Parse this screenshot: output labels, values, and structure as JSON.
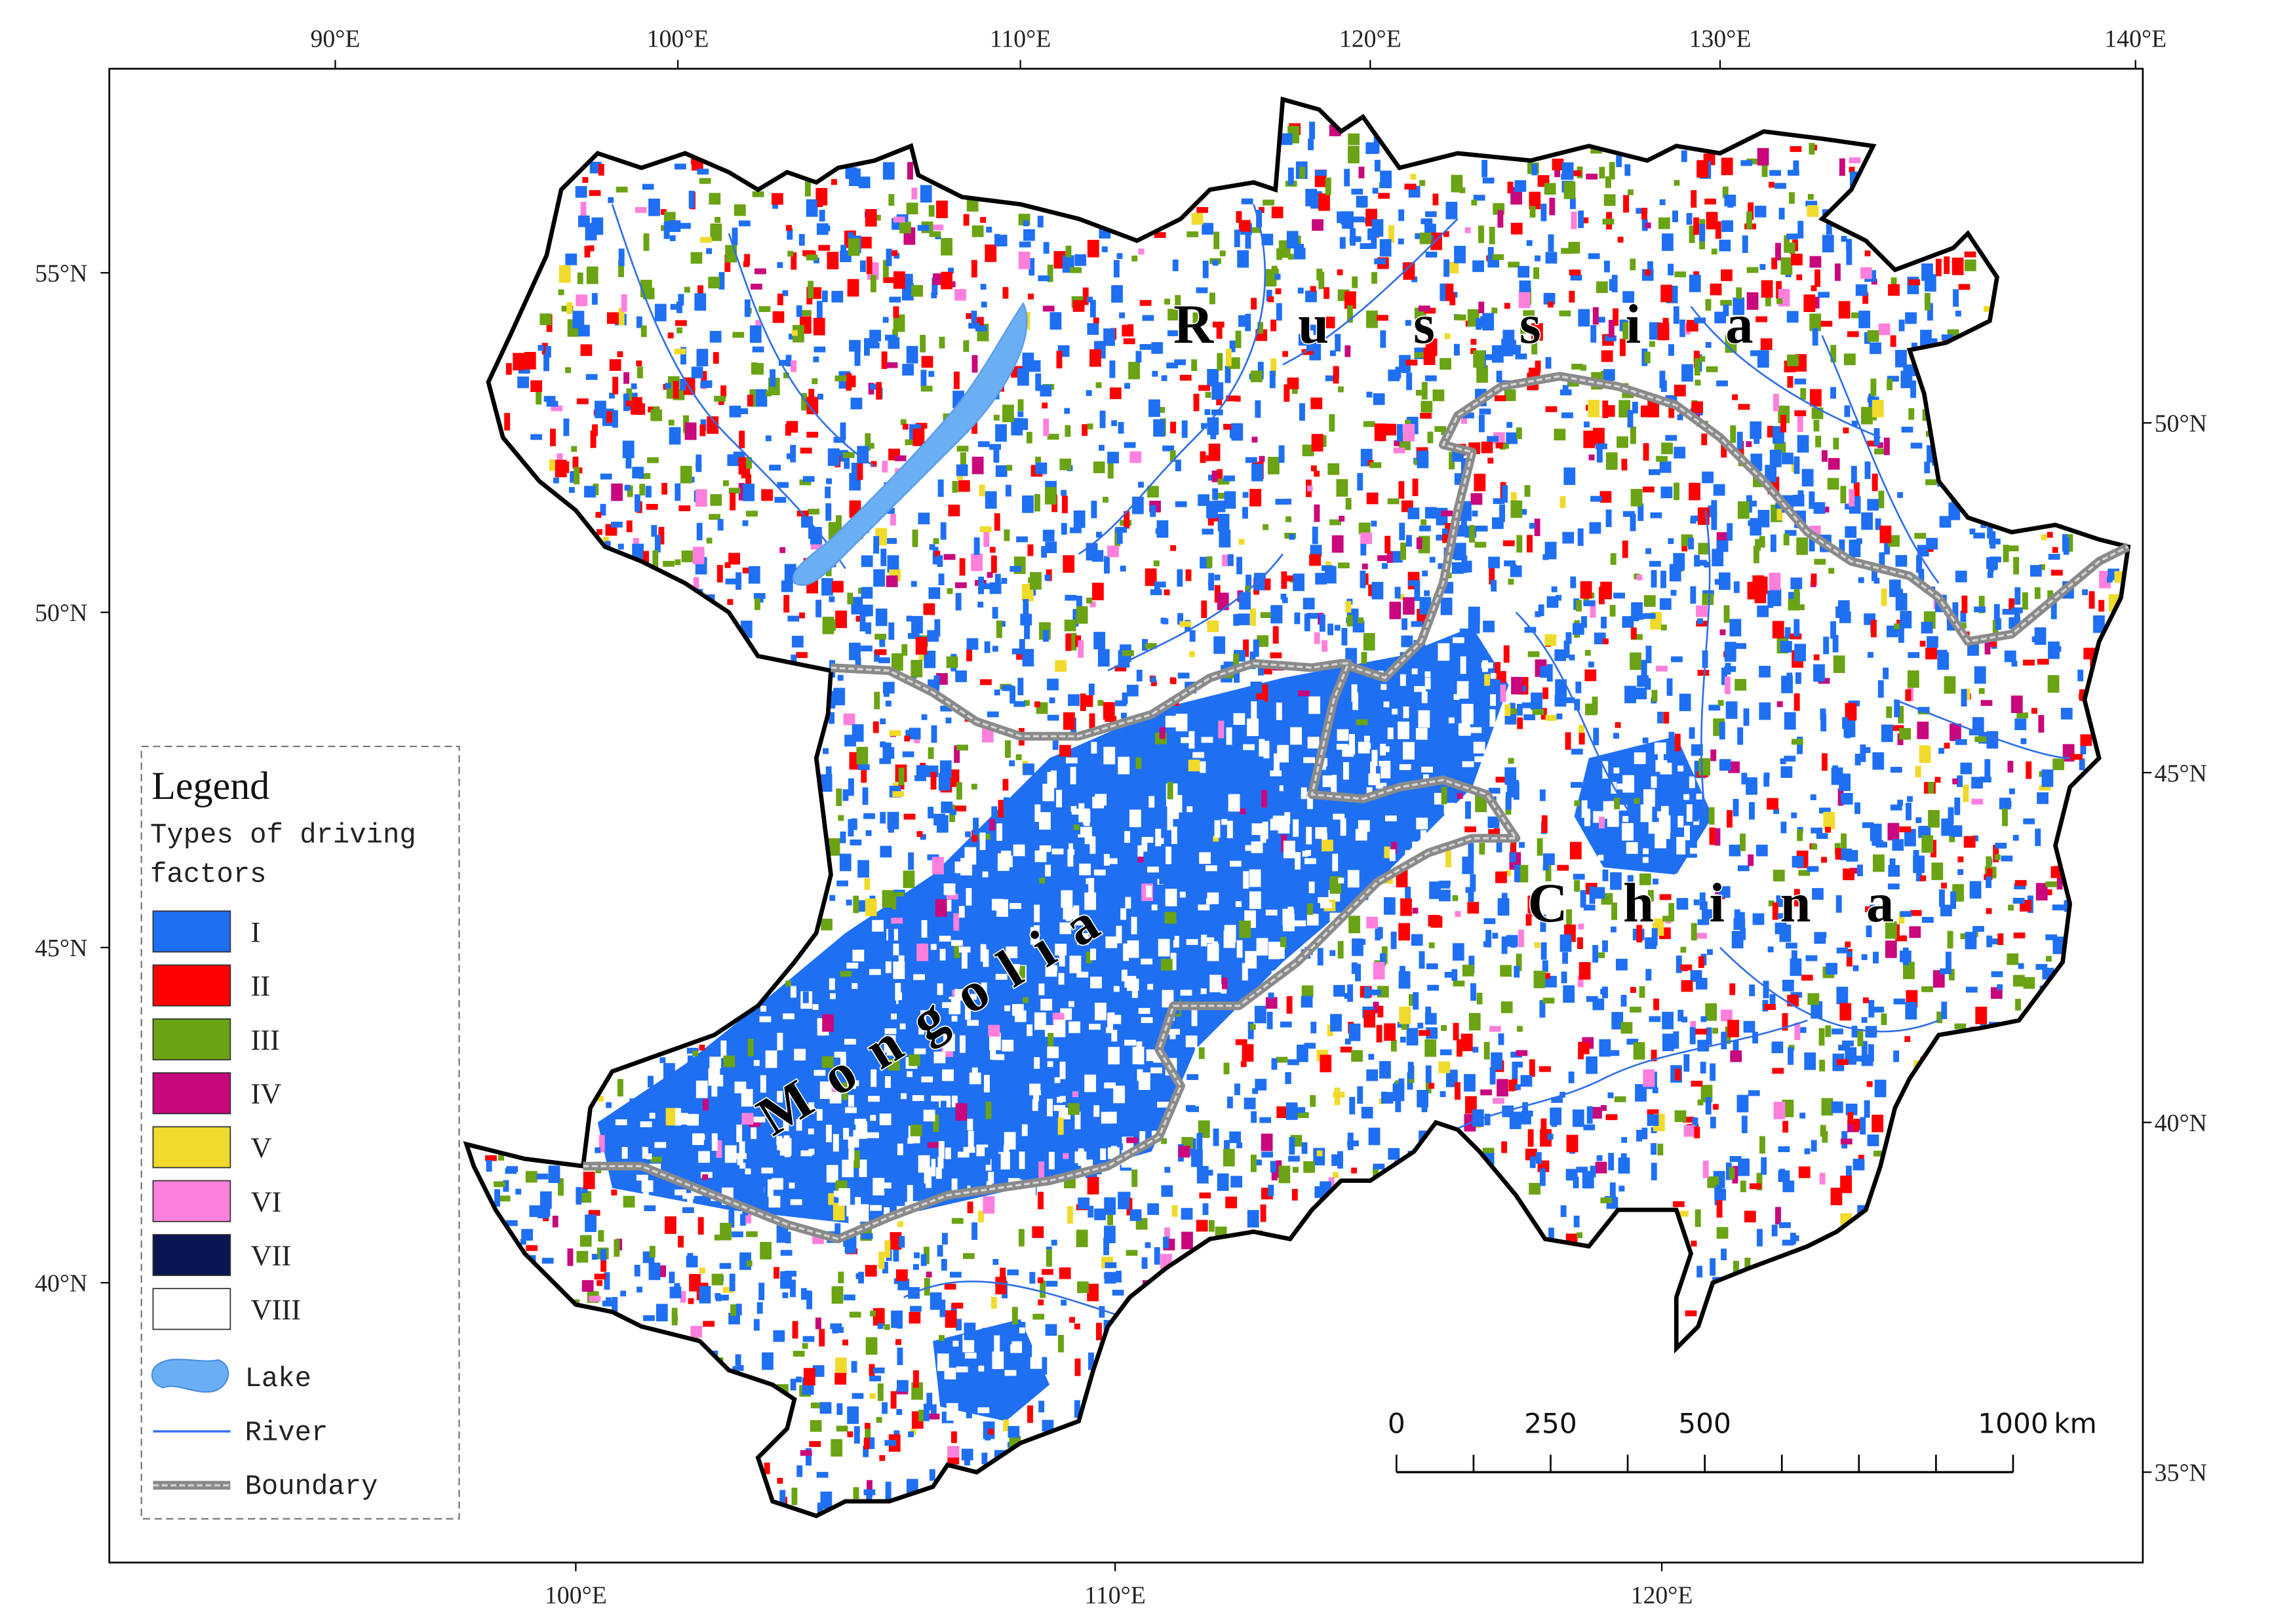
{
  "map": {
    "top_labels": [
      "90°E",
      "100°E",
      "110°E",
      "120°E",
      "130°E",
      "140°E"
    ],
    "bottom_labels": [
      "100°E",
      "110°E",
      "120°E"
    ],
    "left_labels": [
      "55°N",
      "50°N",
      "45°N",
      "40°N"
    ],
    "right_labels": [
      "50°N",
      "45°N",
      "40°N",
      "35°N"
    ],
    "countries": {
      "russia": "Russia",
      "mongolia": "Mongolia",
      "china": "China"
    },
    "legend": {
      "title": "Legend",
      "subtitle": "Types of driving factors",
      "items": [
        {
          "label": "I",
          "color": "#1f6ff2"
        },
        {
          "label": "II",
          "color": "#ff0000"
        },
        {
          "label": "III",
          "color": "#6aa314"
        },
        {
          "label": "IV",
          "color": "#c8087c"
        },
        {
          "label": "V",
          "color": "#f0da2c"
        },
        {
          "label": "VI",
          "color": "#ff80dc"
        },
        {
          "label": "VII",
          "color": "#0a1652"
        },
        {
          "label": "VIII",
          "color": "#ffffff"
        }
      ],
      "symbols": [
        {
          "label": "Lake"
        },
        {
          "label": "River"
        },
        {
          "label": "Boundary"
        }
      ]
    },
    "scale_bar": {
      "ticks": [
        0,
        250,
        500,
        1000
      ],
      "unit": "km"
    }
  }
}
